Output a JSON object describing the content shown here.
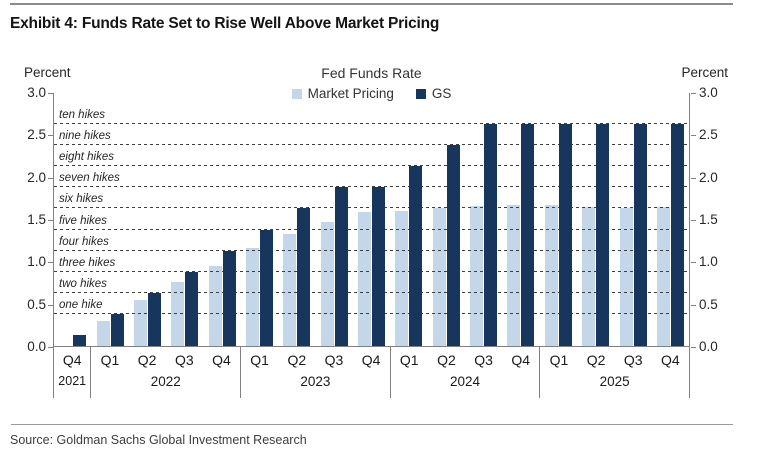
{
  "exhibit_title": "Exhibit 4: Funds Rate Set to Rise Well Above Market Pricing",
  "source": "Source: Goldman Sachs Global Investment Research",
  "axis_unit_left": "Percent",
  "axis_unit_right": "Percent",
  "chart_data": {
    "type": "bar",
    "title": "Fed Funds Rate",
    "ylabel": "Percent",
    "ylim": [
      0.0,
      3.0
    ],
    "yticks": [
      "3.0",
      "2.5",
      "2.0",
      "1.5",
      "1.0",
      "0.5",
      "0.0"
    ],
    "grid": "dashed horizontal lines at rate-hike levels",
    "legend_position": "top-center",
    "categories": [
      "Q4 2021",
      "Q1 2022",
      "Q2 2022",
      "Q3 2022",
      "Q4 2022",
      "Q1 2023",
      "Q2 2023",
      "Q3 2023",
      "Q4 2023",
      "Q1 2024",
      "Q2 2024",
      "Q3 2024",
      "Q4 2024",
      "Q1 2025",
      "Q2 2025",
      "Q3 2025",
      "Q4 2025"
    ],
    "year_groups": [
      {
        "year": "2021",
        "quarters": [
          "Q4"
        ]
      },
      {
        "year": "2022",
        "quarters": [
          "Q1",
          "Q2",
          "Q3",
          "Q4"
        ]
      },
      {
        "year": "2023",
        "quarters": [
          "Q1",
          "Q2",
          "Q3",
          "Q4"
        ]
      },
      {
        "year": "2024",
        "quarters": [
          "Q1",
          "Q2",
          "Q3",
          "Q4"
        ]
      },
      {
        "year": "2025",
        "quarters": [
          "Q1",
          "Q2",
          "Q3",
          "Q4"
        ]
      }
    ],
    "series": [
      {
        "name": "Market Pricing",
        "color": "#C3D6EA",
        "values": [
          null,
          0.3,
          0.54,
          0.76,
          0.95,
          1.16,
          1.32,
          1.47,
          1.58,
          1.59,
          1.63,
          1.65,
          1.67,
          1.66,
          1.64,
          1.63,
          1.64
        ]
      },
      {
        "name": "GS",
        "color": "#17365D",
        "values": [
          0.13,
          0.375,
          0.625,
          0.875,
          1.125,
          1.375,
          1.625,
          1.875,
          1.875,
          2.125,
          2.375,
          2.625,
          2.625,
          2.625,
          2.625,
          2.625,
          2.625
        ]
      }
    ],
    "hike_lines": [
      {
        "label": "one hike",
        "value": 0.375
      },
      {
        "label": "two hikes",
        "value": 0.625
      },
      {
        "label": "three hikes",
        "value": 0.875
      },
      {
        "label": "four hikes",
        "value": 1.125
      },
      {
        "label": "five hikes",
        "value": 1.375
      },
      {
        "label": "six hikes",
        "value": 1.625
      },
      {
        "label": "seven hikes",
        "value": 1.875
      },
      {
        "label": "eight hikes",
        "value": 2.125
      },
      {
        "label": "nine hikes",
        "value": 2.375
      },
      {
        "label": "ten hikes",
        "value": 2.625
      }
    ]
  },
  "colors": {
    "market_pricing": "#C3D6EA",
    "gs": "#17365D",
    "axis": "#808080",
    "gridline": "#3f3f3f"
  }
}
